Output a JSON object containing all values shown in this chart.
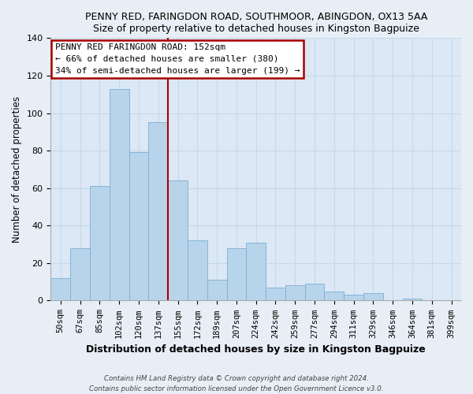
{
  "title": "PENNY RED, FARINGDON ROAD, SOUTHMOOR, ABINGDON, OX13 5AA",
  "subtitle": "Size of property relative to detached houses in Kingston Bagpuize",
  "xlabel": "Distribution of detached houses by size in Kingston Bagpuize",
  "ylabel": "Number of detached properties",
  "categories": [
    "50sqm",
    "67sqm",
    "85sqm",
    "102sqm",
    "120sqm",
    "137sqm",
    "155sqm",
    "172sqm",
    "189sqm",
    "207sqm",
    "224sqm",
    "242sqm",
    "259sqm",
    "277sqm",
    "294sqm",
    "311sqm",
    "329sqm",
    "346sqm",
    "364sqm",
    "381sqm",
    "399sqm"
  ],
  "values": [
    12,
    28,
    61,
    113,
    79,
    95,
    64,
    32,
    11,
    28,
    31,
    7,
    8,
    9,
    5,
    3,
    4,
    0,
    1,
    0,
    0
  ],
  "bar_color": "#b8d4ea",
  "bar_edge_color": "#7aafd4",
  "highlight_line_color": "#aa0000",
  "ylim": [
    0,
    140
  ],
  "yticks": [
    0,
    20,
    40,
    60,
    80,
    100,
    120,
    140
  ],
  "annotation_title": "PENNY RED FARINGDON ROAD: 152sqm",
  "annotation_line1": "← 66% of detached houses are smaller (380)",
  "annotation_line2": "34% of semi-detached houses are larger (199) →",
  "footer1": "Contains HM Land Registry data © Crown copyright and database right 2024.",
  "footer2": "Contains public sector information licensed under the Open Government Licence v3.0.",
  "background_color": "#e8eef5",
  "plot_bg_color": "#dce8f5"
}
